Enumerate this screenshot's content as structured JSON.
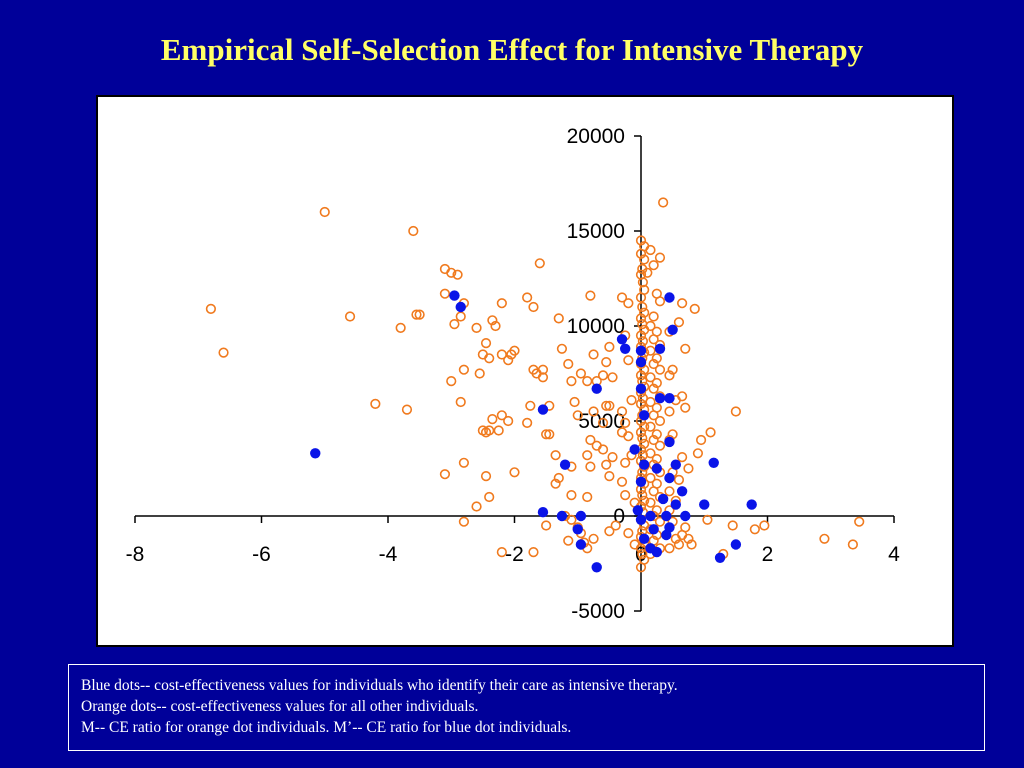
{
  "title": "Empirical Self-Selection Effect for Intensive Therapy",
  "notes": [
    "Blue dots-- cost-effectiveness values for individuals who identify their care as intensive therapy.",
    "Orange dots-- cost-effectiveness values for all other individuals.",
    "M-- CE ratio for orange dot individuals.  M’-- CE ratio for blue dot individuals."
  ],
  "colors": {
    "background": "#000099",
    "title": "#FFFF66",
    "orange": "#F07A1E",
    "blue": "#0A14E8"
  },
  "chart_data": {
    "type": "scatter",
    "xlim": [
      -8,
      4
    ],
    "ylim": [
      -5000,
      20000
    ],
    "x_ticks": [
      -8,
      -6,
      -4,
      -2,
      0,
      2,
      4
    ],
    "y_ticks": [
      -5000,
      0,
      5000,
      10000,
      15000,
      20000
    ],
    "x_tick_labels": [
      "-8",
      "-6",
      "-4",
      "-2",
      "0",
      "2",
      "4"
    ],
    "y_tick_labels": [
      "-5000",
      "0",
      "5000",
      "10000",
      "15000",
      "20000"
    ],
    "grid": false,
    "legend": "none",
    "series": [
      {
        "marker": "hollow-circle",
        "color": "#F07A1E",
        "points": [
          [
            -5.0,
            16000
          ],
          [
            -3.6,
            15000
          ],
          [
            -6.8,
            10900
          ],
          [
            -6.6,
            8600
          ],
          [
            -4.6,
            10500
          ],
          [
            -4.2,
            5900
          ],
          [
            -3.8,
            9900
          ],
          [
            -3.7,
            5600
          ],
          [
            -3.55,
            10600
          ],
          [
            -3.5,
            10600
          ],
          [
            -3.1,
            13000
          ],
          [
            -3.0,
            12800
          ],
          [
            -2.9,
            12700
          ],
          [
            -3.1,
            11700
          ],
          [
            -2.95,
            10100
          ],
          [
            -2.85,
            10500
          ],
          [
            -2.8,
            11200
          ],
          [
            -3.0,
            7100
          ],
          [
            -2.8,
            7700
          ],
          [
            -2.85,
            6000
          ],
          [
            -3.1,
            2200
          ],
          [
            -2.8,
            2800
          ],
          [
            -2.6,
            9900
          ],
          [
            -2.45,
            9100
          ],
          [
            -2.35,
            10300
          ],
          [
            -2.3,
            10000
          ],
          [
            -2.2,
            11200
          ],
          [
            -2.5,
            8500
          ],
          [
            -2.4,
            8300
          ],
          [
            -2.2,
            8500
          ],
          [
            -2.1,
            8200
          ],
          [
            -2.0,
            8700
          ],
          [
            -2.05,
            8500
          ],
          [
            -2.55,
            7500
          ],
          [
            -2.35,
            5100
          ],
          [
            -2.2,
            5300
          ],
          [
            -2.4,
            4500
          ],
          [
            -2.5,
            4500
          ],
          [
            -2.45,
            4400
          ],
          [
            -2.25,
            4500
          ],
          [
            -2.1,
            5000
          ],
          [
            -2.45,
            2100
          ],
          [
            -2.4,
            1000
          ],
          [
            -2.0,
            2300
          ],
          [
            -2.6,
            500
          ],
          [
            -2.8,
            -300
          ],
          [
            -2.2,
            -1900
          ],
          [
            -1.8,
            11500
          ],
          [
            -1.7,
            11000
          ],
          [
            -1.6,
            13300
          ],
          [
            -1.7,
            7700
          ],
          [
            -1.65,
            7500
          ],
          [
            -1.55,
            7700
          ],
          [
            -1.55,
            7300
          ],
          [
            -1.45,
            5800
          ],
          [
            -1.45,
            4300
          ],
          [
            -1.5,
            4300
          ],
          [
            -1.35,
            3200
          ],
          [
            -1.3,
            2000
          ],
          [
            -1.35,
            1700
          ],
          [
            -1.8,
            4900
          ],
          [
            -1.75,
            5800
          ],
          [
            -1.7,
            -1900
          ],
          [
            -1.5,
            -500
          ],
          [
            -1.3,
            10400
          ],
          [
            -1.25,
            8800
          ],
          [
            -1.15,
            8000
          ],
          [
            -1.1,
            7100
          ],
          [
            -1.05,
            6000
          ],
          [
            -1.0,
            5300
          ],
          [
            -0.95,
            7500
          ],
          [
            -0.8,
            11600
          ],
          [
            -0.85,
            7100
          ],
          [
            -0.75,
            8500
          ],
          [
            -0.7,
            7100
          ],
          [
            -0.6,
            7400
          ],
          [
            -0.55,
            8100
          ],
          [
            -0.5,
            8900
          ],
          [
            -0.45,
            7300
          ],
          [
            -0.55,
            5800
          ],
          [
            -0.5,
            5800
          ],
          [
            -0.6,
            4900
          ],
          [
            -0.75,
            5500
          ],
          [
            -0.8,
            4000
          ],
          [
            -0.85,
            3200
          ],
          [
            -0.7,
            3700
          ],
          [
            -0.6,
            3500
          ],
          [
            -0.55,
            2700
          ],
          [
            -0.5,
            2100
          ],
          [
            -0.45,
            3100
          ],
          [
            -0.85,
            1000
          ],
          [
            -0.8,
            2600
          ],
          [
            -1.1,
            2600
          ],
          [
            -1.1,
            1100
          ],
          [
            -1.0,
            -600
          ],
          [
            -0.95,
            -900
          ],
          [
            -0.9,
            -1400
          ],
          [
            -0.85,
            -1700
          ],
          [
            -0.75,
            -1200
          ],
          [
            -1.2,
            0
          ],
          [
            -1.1,
            -200
          ],
          [
            -1.15,
            -1300
          ],
          [
            -0.5,
            -800
          ],
          [
            -0.4,
            -500
          ],
          [
            -0.3,
            11500
          ],
          [
            -0.2,
            11200
          ],
          [
            -0.25,
            9500
          ],
          [
            -0.2,
            8200
          ],
          [
            -0.15,
            6100
          ],
          [
            -0.3,
            5500
          ],
          [
            -0.25,
            4900
          ],
          [
            -0.3,
            4400
          ],
          [
            -0.2,
            4200
          ],
          [
            -0.15,
            3200
          ],
          [
            -0.25,
            2800
          ],
          [
            -0.3,
            1800
          ],
          [
            -0.25,
            1100
          ],
          [
            -0.1,
            700
          ],
          [
            -0.2,
            -900
          ],
          [
            -0.1,
            -1500
          ],
          [
            0.0,
            14500
          ],
          [
            0.05,
            14200
          ],
          [
            0.0,
            13800
          ],
          [
            0.05,
            13500
          ],
          [
            0.02,
            13000
          ],
          [
            0.0,
            12700
          ],
          [
            0.03,
            12300
          ],
          [
            0.05,
            11900
          ],
          [
            0.0,
            11500
          ],
          [
            0.02,
            11000
          ],
          [
            0.05,
            10700
          ],
          [
            0.0,
            10400
          ],
          [
            0.02,
            10100
          ],
          [
            0.05,
            9800
          ],
          [
            0.0,
            9500
          ],
          [
            0.03,
            9200
          ],
          [
            0.0,
            8900
          ],
          [
            0.05,
            8600
          ],
          [
            0.02,
            8300
          ],
          [
            0.0,
            8000
          ],
          [
            0.05,
            7700
          ],
          [
            0.0,
            7400
          ],
          [
            0.02,
            7100
          ],
          [
            0.05,
            6800
          ],
          [
            0.0,
            6500
          ],
          [
            0.03,
            6200
          ],
          [
            0.0,
            5900
          ],
          [
            0.05,
            5600
          ],
          [
            0.02,
            5300
          ],
          [
            0.0,
            5000
          ],
          [
            0.05,
            4700
          ],
          [
            0.0,
            4400
          ],
          [
            0.02,
            4100
          ],
          [
            0.05,
            3800
          ],
          [
            0.0,
            3500
          ],
          [
            0.03,
            3200
          ],
          [
            0.0,
            2900
          ],
          [
            0.05,
            2600
          ],
          [
            0.02,
            2300
          ],
          [
            0.0,
            2000
          ],
          [
            0.05,
            1700
          ],
          [
            0.0,
            1400
          ],
          [
            0.02,
            1100
          ],
          [
            0.05,
            800
          ],
          [
            0.0,
            500
          ],
          [
            0.03,
            200
          ],
          [
            0.0,
            -200
          ],
          [
            0.05,
            -500
          ],
          [
            0.02,
            -800
          ],
          [
            0.0,
            -1100
          ],
          [
            0.05,
            -1400
          ],
          [
            0.0,
            -1700
          ],
          [
            0.02,
            -2000
          ],
          [
            0.05,
            -2300
          ],
          [
            0.0,
            -2700
          ],
          [
            0.15,
            14000
          ],
          [
            0.2,
            13200
          ],
          [
            0.1,
            12800
          ],
          [
            0.3,
            13600
          ],
          [
            0.35,
            16500
          ],
          [
            0.25,
            11700
          ],
          [
            0.3,
            11300
          ],
          [
            0.2,
            10500
          ],
          [
            0.15,
            10000
          ],
          [
            0.25,
            9700
          ],
          [
            0.2,
            9300
          ],
          [
            0.3,
            9000
          ],
          [
            0.15,
            8700
          ],
          [
            0.25,
            8300
          ],
          [
            0.2,
            8000
          ],
          [
            0.3,
            7700
          ],
          [
            0.15,
            7300
          ],
          [
            0.25,
            7000
          ],
          [
            0.2,
            6700
          ],
          [
            0.3,
            6300
          ],
          [
            0.15,
            6000
          ],
          [
            0.25,
            5700
          ],
          [
            0.2,
            5300
          ],
          [
            0.3,
            5000
          ],
          [
            0.15,
            4700
          ],
          [
            0.25,
            4300
          ],
          [
            0.2,
            4000
          ],
          [
            0.3,
            3700
          ],
          [
            0.15,
            3300
          ],
          [
            0.25,
            3000
          ],
          [
            0.2,
            2700
          ],
          [
            0.3,
            2300
          ],
          [
            0.15,
            2000
          ],
          [
            0.25,
            1700
          ],
          [
            0.2,
            1300
          ],
          [
            0.3,
            1000
          ],
          [
            0.15,
            700
          ],
          [
            0.25,
            300
          ],
          [
            0.2,
            0
          ],
          [
            0.3,
            -300
          ],
          [
            0.15,
            -700
          ],
          [
            0.25,
            -1000
          ],
          [
            0.2,
            -1300
          ],
          [
            0.3,
            -1700
          ],
          [
            0.15,
            -2000
          ],
          [
            0.45,
            9700
          ],
          [
            0.5,
            7700
          ],
          [
            0.45,
            7400
          ],
          [
            0.55,
            6100
          ],
          [
            0.45,
            5500
          ],
          [
            0.5,
            4300
          ],
          [
            0.45,
            4000
          ],
          [
            0.5,
            2300
          ],
          [
            0.45,
            1300
          ],
          [
            0.55,
            800
          ],
          [
            0.45,
            300
          ],
          [
            0.5,
            -300
          ],
          [
            0.55,
            -1200
          ],
          [
            0.6,
            -1500
          ],
          [
            0.45,
            -1700
          ],
          [
            0.6,
            10200
          ],
          [
            0.65,
            11200
          ],
          [
            0.7,
            8800
          ],
          [
            0.65,
            6300
          ],
          [
            0.7,
            5700
          ],
          [
            0.65,
            3100
          ],
          [
            0.6,
            1900
          ],
          [
            0.75,
            2500
          ],
          [
            0.7,
            -600
          ],
          [
            0.65,
            -1000
          ],
          [
            0.75,
            -1200
          ],
          [
            0.8,
            -1500
          ],
          [
            0.85,
            10900
          ],
          [
            0.9,
            3300
          ],
          [
            0.95,
            4000
          ],
          [
            1.05,
            -200
          ],
          [
            1.1,
            4400
          ],
          [
            1.5,
            5500
          ],
          [
            1.45,
            -500
          ],
          [
            1.3,
            -2000
          ],
          [
            1.95,
            -500
          ],
          [
            1.8,
            -700
          ],
          [
            2.9,
            -1200
          ],
          [
            3.45,
            -300
          ],
          [
            3.35,
            -1500
          ]
        ]
      },
      {
        "marker": "filled-circle",
        "color": "#0A14E8",
        "points": [
          [
            -5.15,
            3300
          ],
          [
            -2.95,
            11600
          ],
          [
            -2.85,
            11000
          ],
          [
            -1.55,
            5600
          ],
          [
            -1.2,
            2700
          ],
          [
            -1.55,
            200
          ],
          [
            -1.25,
            0
          ],
          [
            -0.95,
            0
          ],
          [
            -1.0,
            -700
          ],
          [
            -0.95,
            -1500
          ],
          [
            -0.7,
            -2700
          ],
          [
            -0.7,
            6700
          ],
          [
            -0.3,
            9300
          ],
          [
            -0.25,
            8800
          ],
          [
            -0.1,
            3500
          ],
          [
            -0.05,
            300
          ],
          [
            0.0,
            -200
          ],
          [
            0.05,
            -1200
          ],
          [
            0.0,
            8700
          ],
          [
            0.0,
            8100
          ],
          [
            0.0,
            6700
          ],
          [
            0.05,
            5300
          ],
          [
            0.05,
            2700
          ],
          [
            0.0,
            1800
          ],
          [
            0.15,
            0
          ],
          [
            0.2,
            -700
          ],
          [
            0.15,
            -1700
          ],
          [
            0.25,
            -1900
          ],
          [
            0.3,
            8800
          ],
          [
            0.3,
            6200
          ],
          [
            0.25,
            2500
          ],
          [
            0.35,
            900
          ],
          [
            0.4,
            0
          ],
          [
            0.45,
            11500
          ],
          [
            0.5,
            9800
          ],
          [
            0.45,
            6200
          ],
          [
            0.45,
            3900
          ],
          [
            0.45,
            2000
          ],
          [
            0.55,
            2700
          ],
          [
            0.55,
            600
          ],
          [
            0.45,
            -600
          ],
          [
            0.4,
            -1000
          ],
          [
            0.65,
            1300
          ],
          [
            0.7,
            0
          ],
          [
            1.0,
            600
          ],
          [
            1.15,
            2800
          ],
          [
            1.25,
            -2200
          ],
          [
            1.5,
            -1500
          ],
          [
            1.75,
            600
          ]
        ]
      }
    ]
  }
}
